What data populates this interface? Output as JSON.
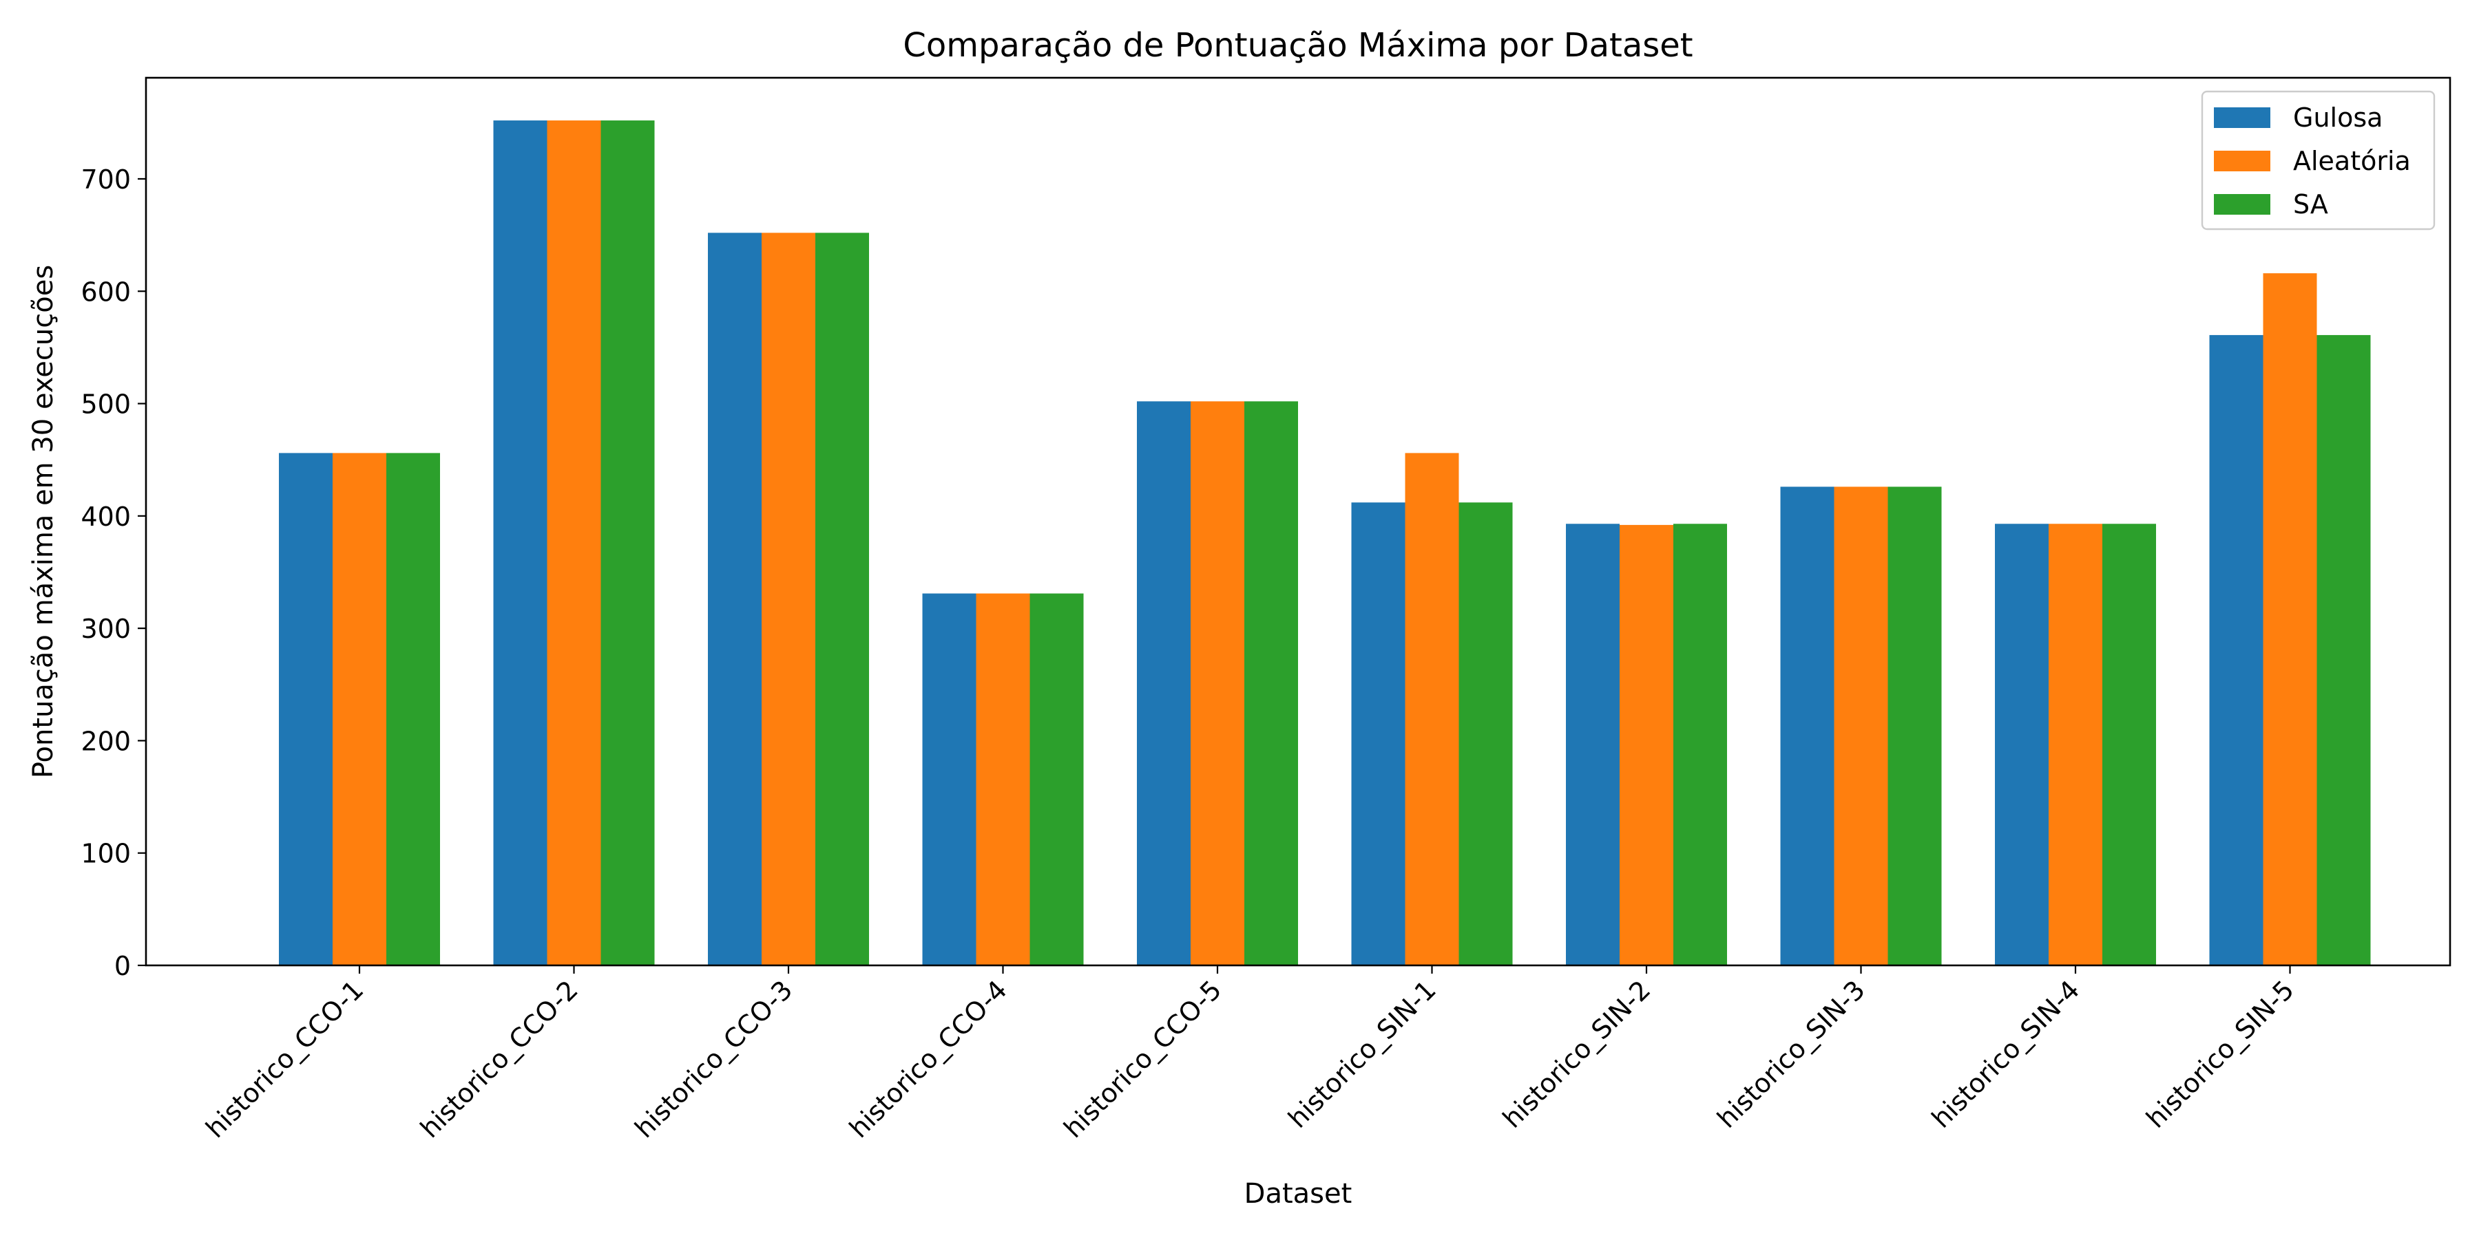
{
  "chart_data": {
    "type": "bar",
    "title": "Comparação de Pontuação Máxima por Dataset",
    "xlabel": "Dataset",
    "ylabel": "Pontuação máxima em 30 execuções",
    "categories": [
      "historico_CCO-1",
      "historico_CCO-2",
      "historico_CCO-3",
      "historico_CCO-4",
      "historico_CCO-5",
      "historico_SIN-1",
      "historico_SIN-2",
      "historico_SIN-3",
      "historico_SIN-4",
      "historico_SIN-5"
    ],
    "series": [
      {
        "name": "Gulosa",
        "color": "#1f77b4",
        "values": [
          456,
          752,
          652,
          331,
          502,
          412,
          393,
          426,
          393,
          561
        ]
      },
      {
        "name": "Aleatória",
        "color": "#ff7f0e",
        "values": [
          456,
          752,
          652,
          331,
          502,
          456,
          392,
          426,
          393,
          616
        ]
      },
      {
        "name": "SA",
        "color": "#2ca02c",
        "values": [
          456,
          752,
          652,
          331,
          502,
          412,
          393,
          426,
          393,
          561
        ]
      }
    ],
    "ylim": [
      0,
      790
    ],
    "yticks": [
      0,
      100,
      200,
      300,
      400,
      500,
      600,
      700
    ],
    "grid": false,
    "legend": "top-right"
  }
}
